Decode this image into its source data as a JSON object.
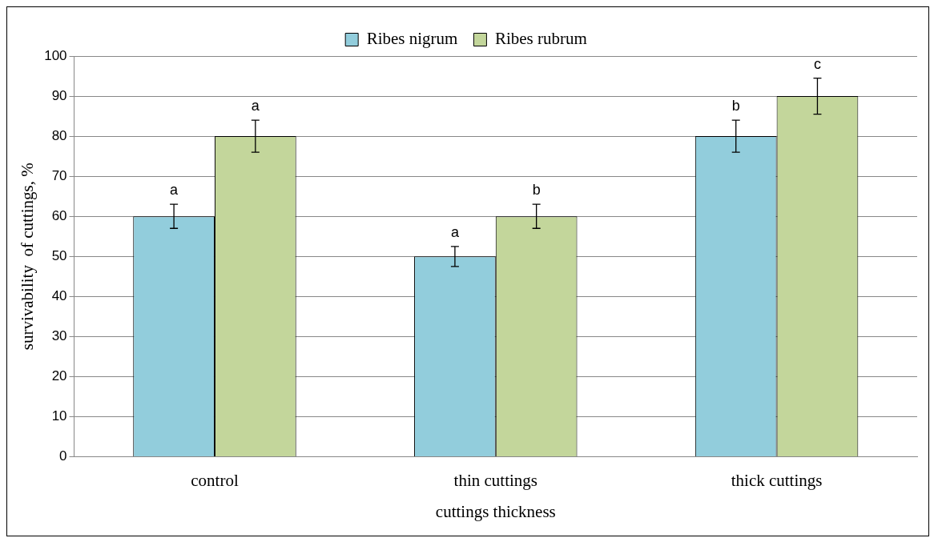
{
  "chart_data": {
    "type": "bar",
    "xlabel": "cuttings thickness",
    "ylabel": "survivability  of cuttings, %",
    "categories": [
      "control",
      "thin cuttings",
      "thick cuttings"
    ],
    "series": [
      {
        "name": "Ribes nigrum",
        "color": "#92cddc",
        "values": [
          60,
          50,
          80
        ],
        "errors": [
          3,
          2.5,
          4
        ],
        "value_labels": [
          "a",
          "a",
          "b"
        ]
      },
      {
        "name": "Ribes rubrum",
        "color": "#c3d69b",
        "values": [
          80,
          60,
          90
        ],
        "errors": [
          4,
          3,
          4.5
        ],
        "value_labels": [
          "a",
          "b",
          "c"
        ]
      }
    ],
    "ylim": [
      0,
      100
    ],
    "yticks": [
      0,
      10,
      20,
      30,
      40,
      50,
      60,
      70,
      80,
      90,
      100
    ],
    "grid": "y",
    "legend": "top"
  }
}
